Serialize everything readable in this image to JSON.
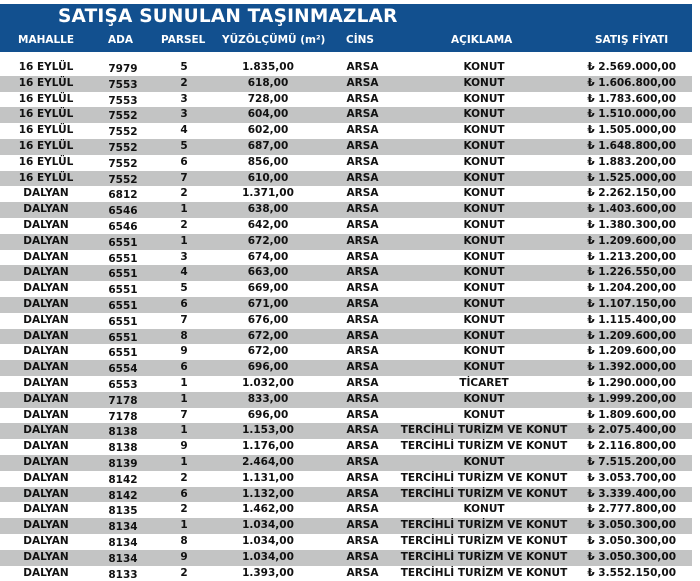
{
  "title": "SATIŞA SUNULAN TAŞINMAZLAR",
  "colors": {
    "header_bg": "#12508f",
    "stripe": "#c3c4c4"
  },
  "columns": [
    "MAHALLE",
    "ADA",
    "PARSEL",
    "YÜZÖLÇÜMÜ (m²)",
    "CİNS",
    "AÇIKLAMA",
    "SATIŞ FİYATI"
  ],
  "rows": [
    [
      "16 EYLÜL",
      "7979",
      "5",
      "1.835,00",
      "ARSA",
      "KONUT",
      "₺ 2.569.000,00"
    ],
    [
      "16 EYLÜL",
      "7553",
      "2",
      "618,00",
      "ARSA",
      "KONUT",
      "₺ 1.606.800,00"
    ],
    [
      "16 EYLÜL",
      "7553",
      "3",
      "728,00",
      "ARSA",
      "KONUT",
      "₺ 1.783.600,00"
    ],
    [
      "16 EYLÜL",
      "7552",
      "3",
      "604,00",
      "ARSA",
      "KONUT",
      "₺ 1.510.000,00"
    ],
    [
      "16 EYLÜL",
      "7552",
      "4",
      "602,00",
      "ARSA",
      "KONUT",
      "₺ 1.505.000,00"
    ],
    [
      "16 EYLÜL",
      "7552",
      "5",
      "687,00",
      "ARSA",
      "KONUT",
      "₺ 1.648.800,00"
    ],
    [
      "16 EYLÜL",
      "7552",
      "6",
      "856,00",
      "ARSA",
      "KONUT",
      "₺ 1.883.200,00"
    ],
    [
      "16 EYLÜL",
      "7552",
      "7",
      "610,00",
      "ARSA",
      "KONUT",
      "₺ 1.525.000,00"
    ],
    [
      "DALYAN",
      "6812",
      "2",
      "1.371,00",
      "ARSA",
      "KONUT",
      "₺ 2.262.150,00"
    ],
    [
      "DALYAN",
      "6546",
      "1",
      "638,00",
      "ARSA",
      "KONUT",
      "₺ 1.403.600,00"
    ],
    [
      "DALYAN",
      "6546",
      "2",
      "642,00",
      "ARSA",
      "KONUT",
      "₺ 1.380.300,00"
    ],
    [
      "DALYAN",
      "6551",
      "1",
      "672,00",
      "ARSA",
      "KONUT",
      "₺ 1.209.600,00"
    ],
    [
      "DALYAN",
      "6551",
      "3",
      "674,00",
      "ARSA",
      "KONUT",
      "₺ 1.213.200,00"
    ],
    [
      "DALYAN",
      "6551",
      "4",
      "663,00",
      "ARSA",
      "KONUT",
      "₺ 1.226.550,00"
    ],
    [
      "DALYAN",
      "6551",
      "5",
      "669,00",
      "ARSA",
      "KONUT",
      "₺ 1.204.200,00"
    ],
    [
      "DALYAN",
      "6551",
      "6",
      "671,00",
      "ARSA",
      "KONUT",
      "₺ 1.107.150,00"
    ],
    [
      "DALYAN",
      "6551",
      "7",
      "676,00",
      "ARSA",
      "KONUT",
      "₺ 1.115.400,00"
    ],
    [
      "DALYAN",
      "6551",
      "8",
      "672,00",
      "ARSA",
      "KONUT",
      "₺ 1.209.600,00"
    ],
    [
      "DALYAN",
      "6551",
      "9",
      "672,00",
      "ARSA",
      "KONUT",
      "₺ 1.209.600,00"
    ],
    [
      "DALYAN",
      "6554",
      "6",
      "696,00",
      "ARSA",
      "KONUT",
      "₺ 1.392.000,00"
    ],
    [
      "DALYAN",
      "6553",
      "1",
      "1.032,00",
      "ARSA",
      "TİCARET",
      "₺ 1.290.000,00"
    ],
    [
      "DALYAN",
      "7178",
      "1",
      "833,00",
      "ARSA",
      "KONUT",
      "₺ 1.999.200,00"
    ],
    [
      "DALYAN",
      "7178",
      "7",
      "696,00",
      "ARSA",
      "KONUT",
      "₺ 1.809.600,00"
    ],
    [
      "DALYAN",
      "8138",
      "1",
      "1.153,00",
      "ARSA",
      "TERCİHLİ TURİZM VE KONUT",
      "₺ 2.075.400,00"
    ],
    [
      "DALYAN",
      "8138",
      "9",
      "1.176,00",
      "ARSA",
      "TERCİHLİ TURİZM VE KONUT",
      "₺ 2.116.800,00"
    ],
    [
      "DALYAN",
      "8139",
      "1",
      "2.464,00",
      "ARSA",
      "KONUT",
      "₺ 7.515.200,00"
    ],
    [
      "DALYAN",
      "8142",
      "2",
      "1.131,00",
      "ARSA",
      "TERCİHLİ TURİZM VE KONUT",
      "₺ 3.053.700,00"
    ],
    [
      "DALYAN",
      "8142",
      "6",
      "1.132,00",
      "ARSA",
      "TERCİHLİ TURİZM VE KONUT",
      "₺ 3.339.400,00"
    ],
    [
      "DALYAN",
      "8135",
      "2",
      "1.462,00",
      "ARSA",
      "KONUT",
      "₺ 2.777.800,00"
    ],
    [
      "DALYAN",
      "8134",
      "1",
      "1.034,00",
      "ARSA",
      "TERCİHLİ TURİZM VE KONUT",
      "₺ 3.050.300,00"
    ],
    [
      "DALYAN",
      "8134",
      "8",
      "1.034,00",
      "ARSA",
      "TERCİHLİ TURİZM VE KONUT",
      "₺ 3.050.300,00"
    ],
    [
      "DALYAN",
      "8134",
      "9",
      "1.034,00",
      "ARSA",
      "TERCİHLİ TURİZM VE KONUT",
      "₺ 3.050.300,00"
    ],
    [
      "DALYAN",
      "8133",
      "2",
      "1.393,00",
      "ARSA",
      "TERCİHLİ TURİZM VE KONUT",
      "₺ 3.552.150,00"
    ]
  ]
}
